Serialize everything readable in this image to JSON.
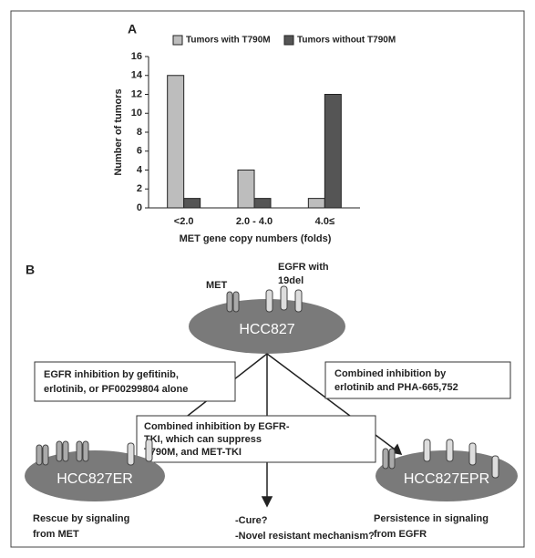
{
  "chart_data": {
    "type": "bar",
    "label": "A",
    "categories": [
      "<2.0",
      "2.0 - 4.0",
      "4.0≤"
    ],
    "series": [
      {
        "name": "Tumors with T790M",
        "color": "#bdbdbd",
        "values": [
          14,
          4,
          1
        ]
      },
      {
        "name": "Tumors without T790M",
        "color": "#555555",
        "values": [
          1,
          1,
          12
        ]
      }
    ],
    "ylabel": "Number of tumors",
    "xlabel": "MET gene copy numbers (folds)",
    "ylim": [
      0,
      16
    ],
    "yticks": [
      0,
      2,
      4,
      6,
      8,
      10,
      12,
      14,
      16
    ]
  },
  "diagram": {
    "label": "B",
    "receptors": {
      "met": "MET",
      "egfr": [
        "EGFR with",
        "19del"
      ]
    },
    "nodes": {
      "parent": "HCC827",
      "left": "HCC827ER",
      "right": "HCC827EPR"
    },
    "treatments": {
      "left": [
        "EGFR inhibition by gefitinib,",
        "erlotinib, or PF00299804 alone"
      ],
      "center": [
        "Combined inhibition by EGFR-",
        "TKI, which can suppress",
        "T790M, and MET-TKI"
      ],
      "right": [
        "Combined inhibition by",
        "erlotinib and PHA-665,752"
      ]
    },
    "outcomes": {
      "left": [
        "Rescue by signaling",
        "from MET"
      ],
      "center": [
        "-Cure?",
        "-Novel resistant mechanism?"
      ],
      "right": [
        "Persistence in signaling",
        "from EGFR"
      ]
    }
  }
}
